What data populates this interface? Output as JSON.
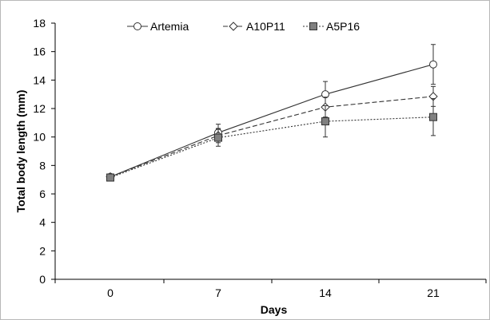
{
  "chart_data": {
    "type": "line",
    "title": "",
    "xlabel": "Days",
    "ylabel": "Total body length (mm)",
    "categories": [
      "0",
      "7",
      "14",
      "21"
    ],
    "ylim": [
      0,
      18
    ],
    "yticks": [
      0,
      2,
      4,
      6,
      8,
      10,
      12,
      14,
      16,
      18
    ],
    "grid": false,
    "legend_position": "top",
    "series": [
      {
        "name": "Artemia",
        "values": [
          7.2,
          10.3,
          13.0,
          15.1
        ],
        "error": [
          0.15,
          0.6,
          0.9,
          1.4
        ],
        "marker": "circle",
        "line_style": "solid",
        "marker_fill": "#ffffff",
        "color": "#333333"
      },
      {
        "name": "A10P11",
        "values": [
          7.2,
          10.1,
          12.1,
          12.85
        ],
        "error": [
          0.15,
          0.5,
          0.7,
          0.7
        ],
        "marker": "diamond",
        "line_style": "dashed",
        "marker_fill": "#ffffff",
        "color": "#333333"
      },
      {
        "name": "A5P16",
        "values": [
          7.15,
          9.95,
          11.1,
          11.4
        ],
        "error": [
          0.1,
          0.6,
          1.1,
          1.3
        ],
        "marker": "square",
        "line_style": "dotted",
        "marker_fill": "#808080",
        "color": "#333333"
      }
    ]
  }
}
